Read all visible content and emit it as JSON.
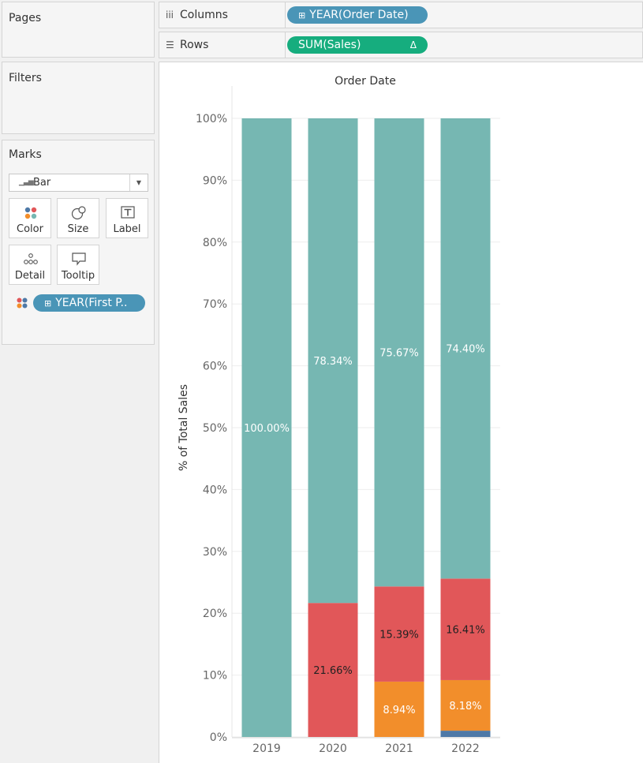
{
  "pages": {
    "title": "Pages"
  },
  "filters": {
    "title": "Filters"
  },
  "columns": {
    "label": "Columns",
    "icon": "columns-icon",
    "pill": "YEAR(Order Date)"
  },
  "rows": {
    "label": "Rows",
    "icon": "rows-icon",
    "pill": "SUM(Sales)",
    "pill_badge": "Δ"
  },
  "marks": {
    "title": "Marks",
    "type": "Bar",
    "buttons": {
      "color": "Color",
      "size": "Size",
      "label": "Label",
      "detail": "Detail",
      "tooltip": "Tooltip"
    },
    "color_pill": "YEAR(First P.."
  },
  "colors": {
    "pill_blue": "#4a95b7",
    "pill_green": "#16ad7e",
    "series": [
      "#4e79a7",
      "#f28e2b",
      "#e15759",
      "#76b7b2"
    ]
  },
  "chart_data": {
    "type": "bar",
    "stacked": true,
    "title": "Order Date",
    "xlabel": "",
    "ylabel": "% of Total Sales",
    "ylim": [
      0,
      100
    ],
    "yticks": [
      "0%",
      "10%",
      "20%",
      "30%",
      "40%",
      "50%",
      "60%",
      "70%",
      "80%",
      "90%",
      "100%"
    ],
    "categories": [
      "2019",
      "2020",
      "2021",
      "2022"
    ],
    "series": [
      {
        "values": [
          0,
          0,
          0,
          1.01
        ],
        "labels": [
          "",
          "",
          "",
          ""
        ]
      },
      {
        "values": [
          0,
          0,
          8.94,
          8.18
        ],
        "labels": [
          "",
          "",
          "8.94%",
          "8.18%"
        ]
      },
      {
        "values": [
          0,
          21.66,
          15.39,
          16.41
        ],
        "labels": [
          "",
          "21.66%",
          "15.39%",
          "16.41%"
        ]
      },
      {
        "values": [
          100,
          78.34,
          75.67,
          74.4
        ],
        "labels": [
          "100.00%",
          "78.34%",
          "75.67%",
          "74.40%"
        ]
      }
    ],
    "grid": true,
    "legend": "none"
  }
}
